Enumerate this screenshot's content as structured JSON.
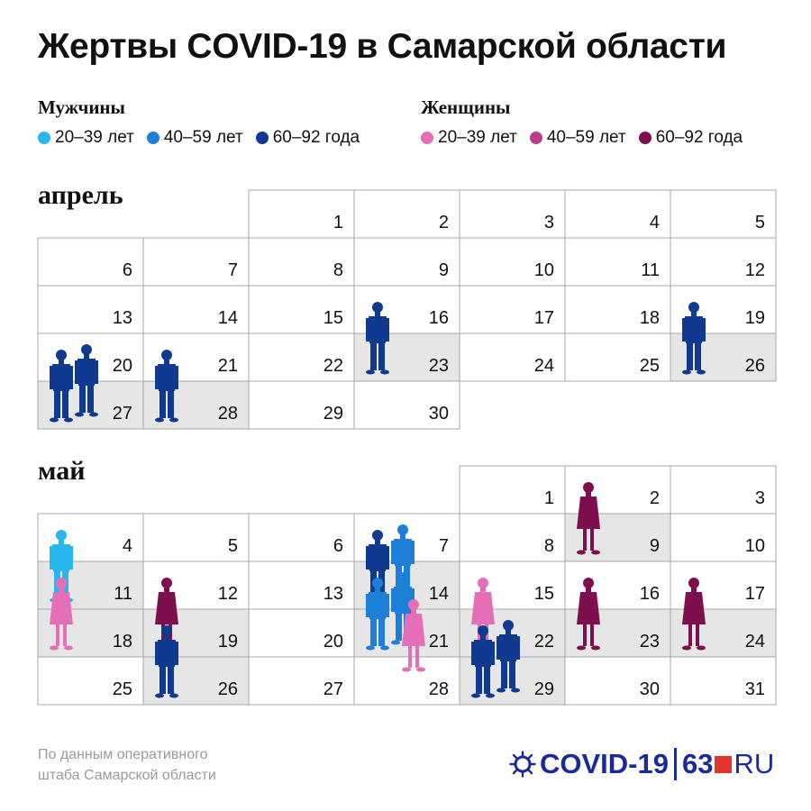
{
  "title": "Жертвы COVID-19 в Самарской области",
  "legend": {
    "men": {
      "heading": "Мужчины",
      "items": [
        {
          "label": "20–39 лет",
          "color": "#27b6ee"
        },
        {
          "label": "40–59 лет",
          "color": "#1e7fd8"
        },
        {
          "label": "60–92 года",
          "color": "#0f3a8f"
        }
      ]
    },
    "women": {
      "heading": "Женщины",
      "items": [
        {
          "label": "20–39 лет",
          "color": "#e56fb7"
        },
        {
          "label": "40–59 лет",
          "color": "#b83e8d"
        },
        {
          "label": "60–92 года",
          "color": "#7d0f4f"
        }
      ]
    }
  },
  "source": {
    "line1": "По данным оперативного",
    "line2": "штаба Самарской области"
  },
  "logo": {
    "left": "COVID-19",
    "num": "63",
    "ru": "RU"
  },
  "chart_data": {
    "type": "table",
    "months": [
      {
        "name": "апрель",
        "start_weekday": 2,
        "days": 30,
        "deaths": [
          {
            "day": 16,
            "sex": "male",
            "age": "60–92",
            "count": 1
          },
          {
            "day": 19,
            "sex": "male",
            "age": "60–92",
            "count": 1
          },
          {
            "day": 20,
            "sex": "male",
            "age": "60–92",
            "count": 2
          },
          {
            "day": 21,
            "sex": "male",
            "age": "60–92",
            "count": 1
          }
        ]
      },
      {
        "name": "май",
        "start_weekday": 4,
        "days": 31,
        "deaths": [
          {
            "day": 2,
            "sex": "female",
            "age": "60–92",
            "count": 1
          },
          {
            "day": 4,
            "sex": "male",
            "age": "20–39",
            "count": 1
          },
          {
            "day": 7,
            "sex": "male",
            "age": "60–92",
            "count": 1
          },
          {
            "day": 7,
            "sex": "male",
            "age": "40–59",
            "count": 1
          },
          {
            "day": 11,
            "sex": "female",
            "age": "20–39",
            "count": 1
          },
          {
            "day": 12,
            "sex": "female",
            "age": "60–92",
            "count": 1
          },
          {
            "day": 14,
            "sex": "male",
            "age": "40–59",
            "count": 2
          },
          {
            "day": 14,
            "sex": "female",
            "age": "20–39",
            "count": 1
          },
          {
            "day": 15,
            "sex": "female",
            "age": "20–39",
            "count": 1
          },
          {
            "day": 16,
            "sex": "female",
            "age": "60–92",
            "count": 1
          },
          {
            "day": 17,
            "sex": "female",
            "age": "60–92",
            "count": 1
          },
          {
            "day": 19,
            "sex": "male",
            "age": "60–92",
            "count": 1
          },
          {
            "day": 22,
            "sex": "male",
            "age": "60–92",
            "count": 2
          }
        ]
      }
    ]
  }
}
